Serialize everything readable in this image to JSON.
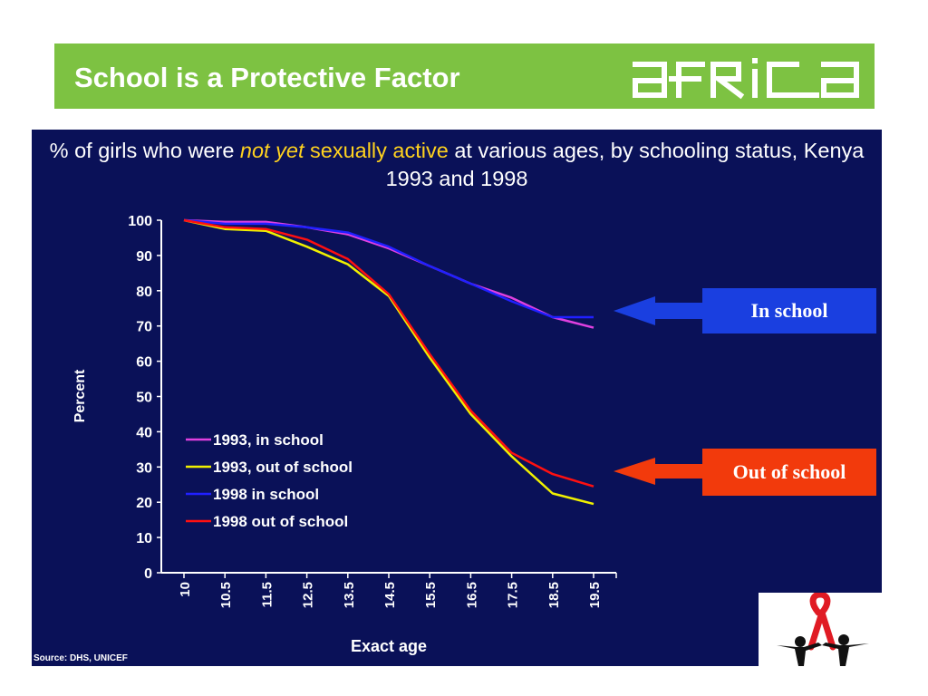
{
  "header": {
    "title": "School is a Protective Factor",
    "logo_text": "africa",
    "bg_color": "#7dc242"
  },
  "slide": {
    "title_parts": [
      {
        "text": "% of girls who were ",
        "style": "normal"
      },
      {
        "text": "not yet",
        "style": "highlight-italic"
      },
      {
        "text": " sexually active",
        "style": "highlight"
      },
      {
        "text": " at various ages, by schooling status,  Kenya 1993 and 1998",
        "style": "normal"
      }
    ],
    "source": "Source: DHS, UNICEF",
    "bg_color": "#0a1158"
  },
  "callouts": {
    "in_school": "In school",
    "out_of_school": "Out of school"
  },
  "chart_data": {
    "type": "line",
    "xlabel": "Exact age",
    "ylabel": "Percent",
    "ylim": [
      0,
      100
    ],
    "yticks": [
      0,
      10,
      20,
      30,
      40,
      50,
      60,
      70,
      80,
      90,
      100
    ],
    "categories": [
      "10",
      "10.5",
      "11.5",
      "12.5",
      "13.5",
      "14.5",
      "15.5",
      "16.5",
      "17.5",
      "18.5",
      "19.5"
    ],
    "grid": false,
    "legend_position": "lower-left",
    "series": [
      {
        "name": "1993, in school",
        "color": "#e040e0",
        "values": [
          100,
          99.5,
          99.5,
          98,
          96,
          92,
          87,
          82,
          78,
          72.5,
          69.5
        ]
      },
      {
        "name": "1993, out of school",
        "color": "#f0f000",
        "values": [
          100,
          97.5,
          97,
          92.5,
          87.5,
          78.5,
          61,
          45,
          33,
          22.5,
          19.5
        ]
      },
      {
        "name": "1998 in school",
        "color": "#2020ff",
        "values": [
          100,
          99,
          99,
          98,
          96.5,
          92.5,
          87,
          82,
          77,
          72.5,
          72.5
        ]
      },
      {
        "name": "1998 out of school",
        "color": "#ff1010",
        "values": [
          100,
          98,
          97.5,
          94.5,
          89,
          79,
          62,
          46,
          34,
          28,
          24.5
        ]
      }
    ]
  }
}
